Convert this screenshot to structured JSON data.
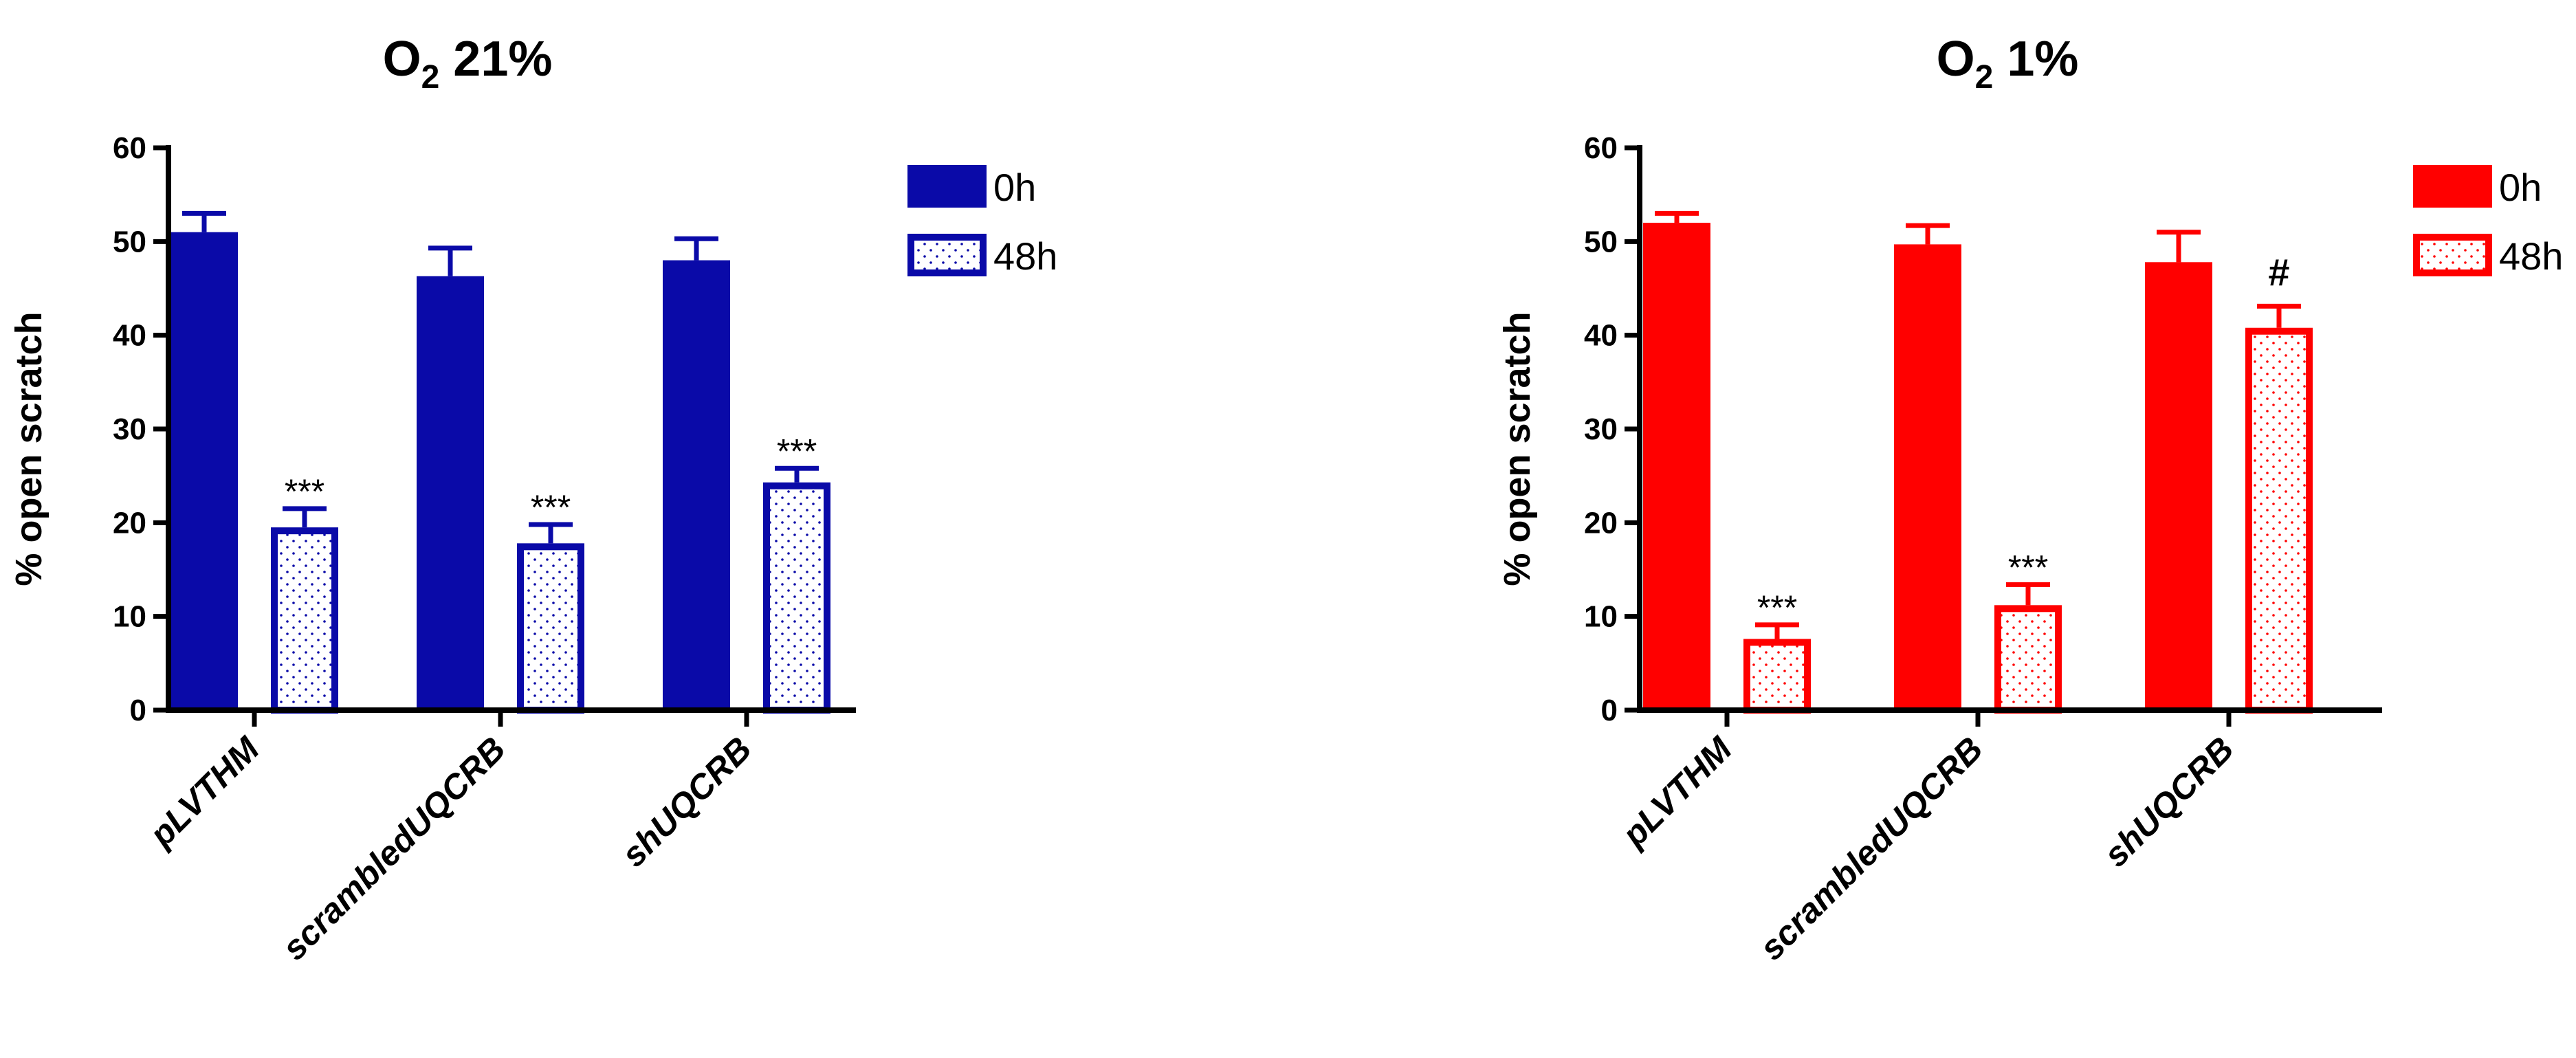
{
  "chart_data": [
    {
      "type": "bar",
      "title_main": "O",
      "title_sub": "2",
      "title_rest": " 21%",
      "ylabel": "% open scratch",
      "xlabel": "",
      "ylim": [
        0,
        60
      ],
      "yticks": [
        "0",
        "10",
        "20",
        "30",
        "40",
        "50",
        "60"
      ],
      "categories": [
        "pLVTHM",
        "scrambledUQCRB",
        "shUQCRB"
      ],
      "series": [
        {
          "name": "0h",
          "values": [
            51,
            46.3,
            48
          ],
          "errors": [
            2,
            3,
            2.3
          ],
          "style": "solid"
        },
        {
          "name": "48h",
          "values": [
            19.5,
            17.8,
            24.3
          ],
          "errors": [
            2,
            2,
            1.5
          ],
          "style": "dotted"
        }
      ],
      "annotations": [
        {
          "category": 0,
          "series": 1,
          "text": "***"
        },
        {
          "category": 1,
          "series": 1,
          "text": "***"
        },
        {
          "category": 2,
          "series": 1,
          "text": "***"
        }
      ],
      "color": "#0a0aa8",
      "legend_placement": "top-right"
    },
    {
      "type": "bar",
      "title_main": "O",
      "title_sub": "2",
      "title_rest": " 1%",
      "ylabel": "% open scratch",
      "xlabel": "",
      "ylim": [
        0,
        60
      ],
      "yticks": [
        "0",
        "10",
        "20",
        "30",
        "40",
        "50",
        "60"
      ],
      "categories": [
        "pLVTHM",
        "scrambledUQCRB",
        "shUQCRB"
      ],
      "series": [
        {
          "name": "0h",
          "values": [
            52,
            49.7,
            47.8
          ],
          "errors": [
            1,
            2,
            3.2
          ],
          "style": "solid"
        },
        {
          "name": "48h",
          "values": [
            7.6,
            11.2,
            40.8
          ],
          "errors": [
            1.5,
            2.2,
            2.3
          ],
          "style": "dotted"
        }
      ],
      "annotations": [
        {
          "category": 0,
          "series": 1,
          "text": "***"
        },
        {
          "category": 1,
          "series": 1,
          "text": "***"
        },
        {
          "category": 2,
          "series": 1,
          "text": "#"
        }
      ],
      "color": "#ff0000",
      "legend_placement": "top-right"
    }
  ]
}
